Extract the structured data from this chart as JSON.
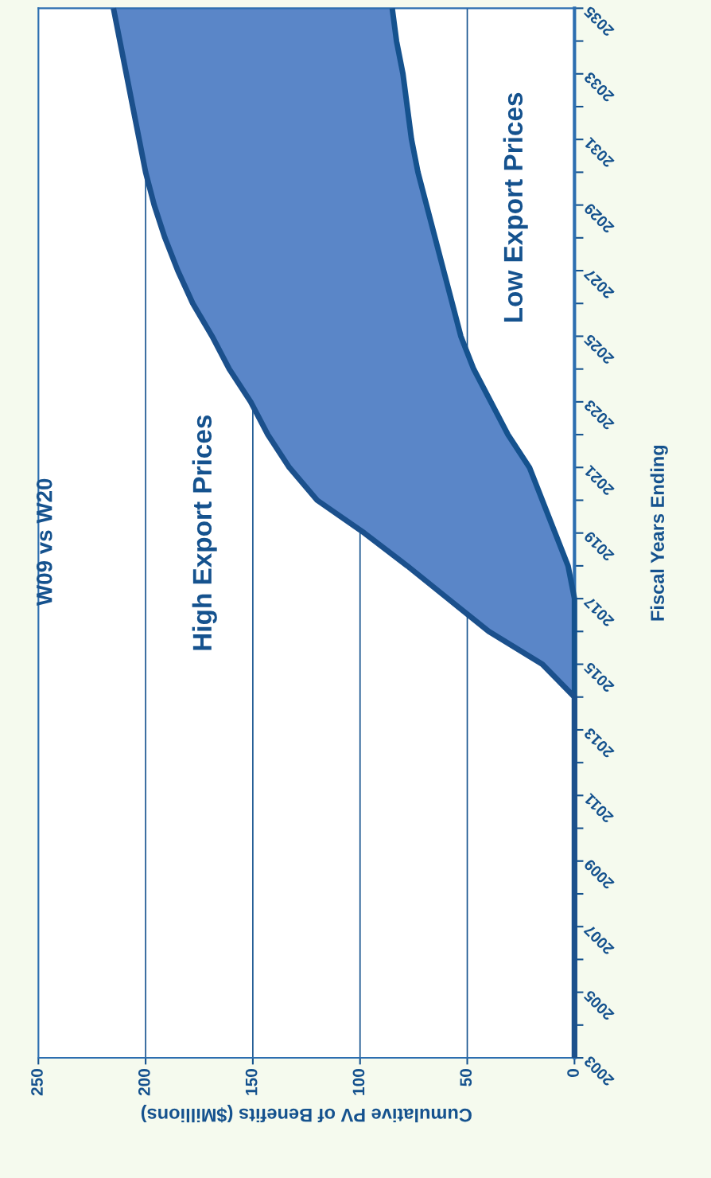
{
  "chart_data": {
    "type": "area",
    "orientation": "horizontal",
    "title": "W09 vs W20",
    "xlabel": "Cumulative PV of Benefits ($Millions)",
    "ylabel": "Fiscal Years Ending",
    "categories": [
      "2035",
      null,
      "2033",
      null,
      "2031",
      null,
      "2029",
      null,
      "2027",
      null,
      "2025",
      null,
      "2023",
      null,
      "2021",
      null,
      "2019",
      null,
      "2017",
      null,
      "2015",
      null,
      "2013",
      null,
      "2011",
      null,
      "2009",
      null,
      "2007",
      null,
      "2005",
      null,
      "2003"
    ],
    "series": [
      {
        "name": "Low Export Prices",
        "type": "line",
        "color": "#15528e",
        "values": [
          85,
          83,
          80,
          78,
          76,
          73,
          69,
          65,
          61,
          57,
          53,
          47,
          39,
          31,
          21,
          15,
          9,
          3,
          0,
          0,
          0,
          0,
          0,
          0,
          0,
          0,
          0,
          0,
          0,
          0,
          0,
          0,
          0
        ]
      },
      {
        "name": "High Export Prices",
        "color": "#5a86c8",
        "values": [
          215,
          212,
          209,
          206,
          203,
          200,
          196,
          191,
          185,
          178,
          169,
          161,
          151,
          143,
          133,
          120,
          98,
          78,
          59,
          40,
          15,
          0,
          0,
          0,
          0,
          0,
          0,
          0,
          0,
          0,
          0,
          0,
          0
        ]
      }
    ],
    "xlim": [
      250,
      0
    ],
    "xticks": [
      250,
      200,
      150,
      100,
      50,
      0
    ],
    "grid": "x",
    "legend": false
  }
}
